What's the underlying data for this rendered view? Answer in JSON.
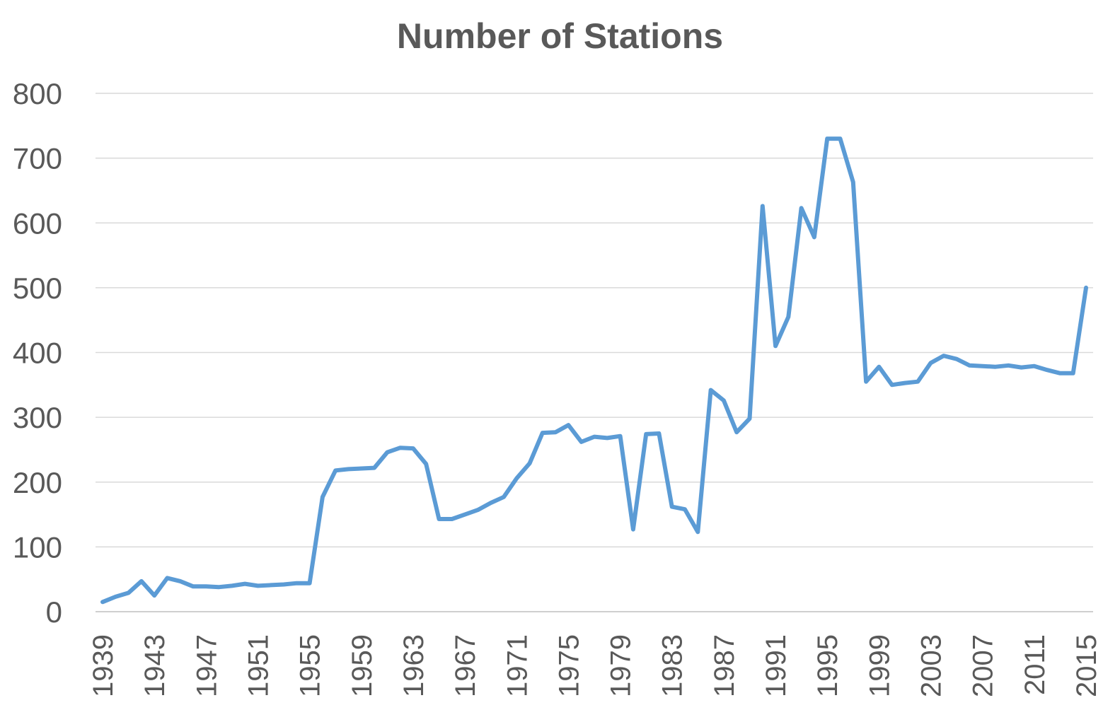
{
  "chart_data": {
    "type": "line",
    "title": "Number of Stations",
    "xlabel": "",
    "ylabel": "",
    "ylim": [
      0,
      800
    ],
    "yticks": [
      0,
      100,
      200,
      300,
      400,
      500,
      600,
      700,
      800
    ],
    "xtick_labels": [
      "1939",
      "1943",
      "1947",
      "1951",
      "1955",
      "1959",
      "1963",
      "1967",
      "1971",
      "1975",
      "1979",
      "1983",
      "1987",
      "1991",
      "1995",
      "1999",
      "2003",
      "2007",
      "2011",
      "2015"
    ],
    "grid": true,
    "legend": "none",
    "series": [
      {
        "color": "#5b9bd5",
        "x": [
          1939,
          1940,
          1941,
          1942,
          1943,
          1944,
          1945,
          1946,
          1947,
          1948,
          1949,
          1950,
          1951,
          1952,
          1953,
          1954,
          1955,
          1956,
          1957,
          1958,
          1959,
          1960,
          1961,
          1962,
          1963,
          1964,
          1965,
          1966,
          1967,
          1968,
          1969,
          1970,
          1971,
          1972,
          1973,
          1974,
          1975,
          1976,
          1977,
          1978,
          1979,
          1980,
          1981,
          1982,
          1983,
          1984,
          1985,
          1986,
          1987,
          1988,
          1989,
          1990,
          1991,
          1992,
          1993,
          1994,
          1995,
          1996,
          1997,
          1998,
          1999,
          2000,
          2001,
          2002,
          2003,
          2004,
          2005,
          2006,
          2007,
          2008,
          2009,
          2010,
          2011,
          2012,
          2013,
          2014,
          2015
        ],
        "values": [
          15,
          23,
          29,
          47,
          25,
          52,
          47,
          39,
          39,
          38,
          40,
          43,
          40,
          41,
          42,
          44,
          44,
          177,
          218,
          220,
          221,
          222,
          246,
          253,
          252,
          228,
          143,
          143,
          150,
          157,
          168,
          177,
          206,
          229,
          276,
          277,
          288,
          262,
          270,
          268,
          271,
          127,
          274,
          275,
          162,
          158,
          123,
          342,
          326,
          277,
          298,
          626,
          410,
          455,
          623,
          578,
          730,
          730,
          663,
          355,
          378,
          350,
          353,
          355,
          384,
          395,
          390,
          380,
          379,
          378,
          380,
          377,
          379,
          373,
          368,
          368,
          500
        ]
      }
    ]
  }
}
